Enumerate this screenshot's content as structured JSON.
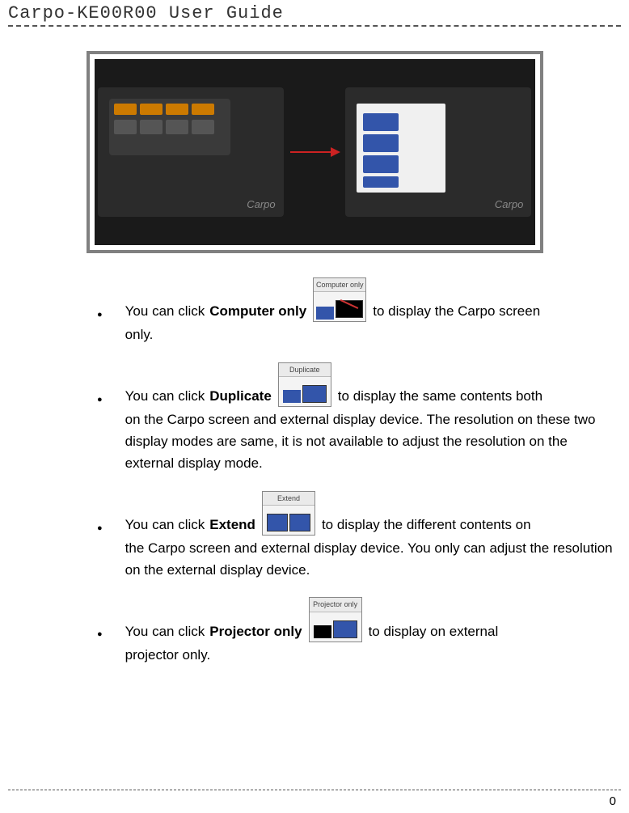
{
  "header": {
    "title": "Carpo-KE00R00  User  Guide"
  },
  "figure": {
    "brand": "Carpo"
  },
  "bullets": [
    {
      "pre": "You can click ",
      "bold": "Computer only",
      "icon_label": "Computer only",
      "icon_type": "computeronly",
      "post_inline": " to display the Carpo screen",
      "rest": "only."
    },
    {
      "pre": "You can click ",
      "bold": "Duplicate",
      "icon_label": "Duplicate",
      "icon_type": "duplicate",
      "post_inline": " to display the same contents both",
      "rest": "on the Carpo screen and external display device. The resolution on these two display modes are same, it is not available to adjust the resolution on the external display mode."
    },
    {
      "pre": "You can click ",
      "bold": "Extend",
      "icon_label": "Extend",
      "icon_type": "extend",
      "post_inline": " to display the different contents on",
      "rest": "the Carpo screen and external display device. You only can adjust the resolution on the external display device."
    },
    {
      "pre": "You can click ",
      "bold": "Projector only",
      "icon_label": "Projector only",
      "icon_type": "projectoronly",
      "post_inline": " to display on external",
      "rest": "projector only."
    }
  ],
  "page_number": "0"
}
